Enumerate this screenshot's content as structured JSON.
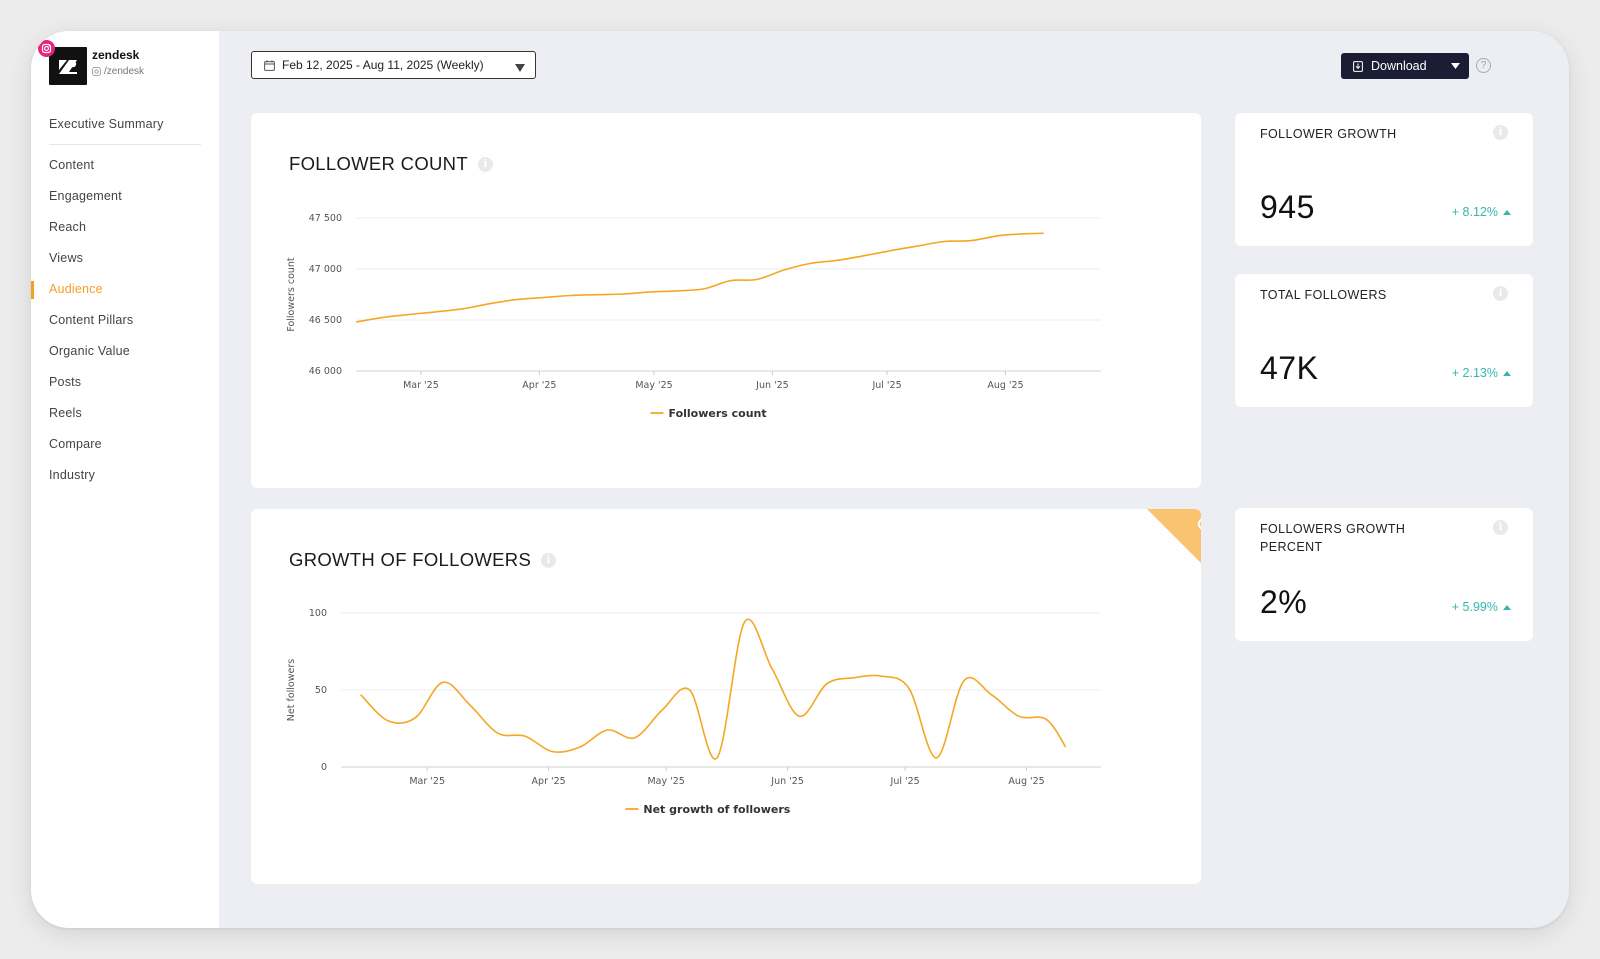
{
  "profile": {
    "name": "zendesk",
    "handle": "/zendesk",
    "network_color": "#e6247b"
  },
  "sidebar": {
    "items": [
      {
        "label": "Executive Summary"
      },
      {
        "label": "Content"
      },
      {
        "label": "Engagement"
      },
      {
        "label": "Reach"
      },
      {
        "label": "Views"
      },
      {
        "label": "Audience"
      },
      {
        "label": "Content Pillars"
      },
      {
        "label": "Organic Value"
      },
      {
        "label": "Posts"
      },
      {
        "label": "Reels"
      },
      {
        "label": "Compare"
      },
      {
        "label": "Industry"
      }
    ],
    "active": "Audience",
    "accent_color": "#f2a127"
  },
  "toolbar": {
    "date_range": "Feb 12, 2025 - Aug 11, 2025 (Weekly)",
    "download_label": "Download",
    "help_symbol": "?"
  },
  "cards": {
    "follower_count": {
      "title": "FOLLOWER COUNT"
    },
    "growth_of_followers": {
      "title": "GROWTH OF FOLLOWERS"
    }
  },
  "stats": {
    "follower_growth": {
      "title": "FOLLOWER GROWTH",
      "value": "945",
      "delta": "+ 8.12%"
    },
    "total_followers": {
      "title": "TOTAL FOLLOWERS",
      "value": "47K",
      "delta": "+ 2.13%"
    },
    "followers_growth_percent": {
      "title": "FOLLOWERS GROWTH PERCENT",
      "value": "2%",
      "delta": "+ 5.99%"
    }
  },
  "colors": {
    "line": "#f5a623",
    "positive": "#35b7ad",
    "button": "#1a1d33"
  },
  "chart_data": [
    {
      "type": "line",
      "title": "FOLLOWER COUNT",
      "ylabel": "Followers count",
      "xlabel": "",
      "x_tick_labels": [
        "Mar '25",
        "Apr '25",
        "May '25",
        "Jun '25",
        "Jul '25",
        "Aug '25"
      ],
      "y_ticks": [
        46000,
        46500,
        47000,
        47500
      ],
      "y_tick_labels": [
        "46 000",
        "46 500",
        "47 000",
        "47 500"
      ],
      "ylim": [
        46000,
        47500
      ],
      "grid": true,
      "legend": "bottom",
      "series": [
        {
          "name": "Followers count",
          "x": [
            "2025-02-12",
            "2025-02-19",
            "2025-02-26",
            "2025-03-05",
            "2025-03-12",
            "2025-03-19",
            "2025-03-26",
            "2025-04-02",
            "2025-04-09",
            "2025-04-16",
            "2025-04-23",
            "2025-04-30",
            "2025-05-07",
            "2025-05-14",
            "2025-05-21",
            "2025-05-28",
            "2025-06-04",
            "2025-06-11",
            "2025-06-18",
            "2025-06-25",
            "2025-07-02",
            "2025-07-09",
            "2025-07-16",
            "2025-07-23",
            "2025-07-30",
            "2025-08-06",
            "2025-08-11"
          ],
          "values": [
            46480,
            46525,
            46555,
            46580,
            46610,
            46660,
            46700,
            46720,
            46740,
            46748,
            46755,
            46775,
            46785,
            46805,
            46885,
            46898,
            46990,
            47055,
            47085,
            47130,
            47180,
            47225,
            47270,
            47278,
            47325,
            47345,
            47350
          ]
        }
      ]
    },
    {
      "type": "line",
      "title": "GROWTH OF FOLLOWERS",
      "ylabel": "Net followers",
      "xlabel": "",
      "x_tick_labels": [
        "Mar '25",
        "Apr '25",
        "May '25",
        "Jun '25",
        "Jul '25",
        "Aug '25"
      ],
      "y_ticks": [
        0,
        50,
        100
      ],
      "y_tick_labels": [
        "0",
        "50",
        "100"
      ],
      "ylim": [
        0,
        100
      ],
      "grid": true,
      "legend": "bottom",
      "series": [
        {
          "name": "Net growth of followers",
          "x": [
            "2025-02-12",
            "2025-02-19",
            "2025-02-26",
            "2025-03-05",
            "2025-03-12",
            "2025-03-19",
            "2025-03-26",
            "2025-04-02",
            "2025-04-09",
            "2025-04-16",
            "2025-04-23",
            "2025-04-30",
            "2025-05-07",
            "2025-05-14",
            "2025-05-21",
            "2025-05-28",
            "2025-06-04",
            "2025-06-11",
            "2025-06-18",
            "2025-06-25",
            "2025-07-02",
            "2025-07-09",
            "2025-07-16",
            "2025-07-23",
            "2025-07-30",
            "2025-08-06",
            "2025-08-11"
          ],
          "values": [
            47,
            30,
            32,
            55,
            40,
            22,
            20,
            10,
            13,
            24,
            19,
            37,
            50,
            6,
            94,
            64,
            33,
            54,
            58,
            59,
            51,
            6,
            56,
            47,
            33,
            31,
            13
          ]
        }
      ]
    }
  ]
}
